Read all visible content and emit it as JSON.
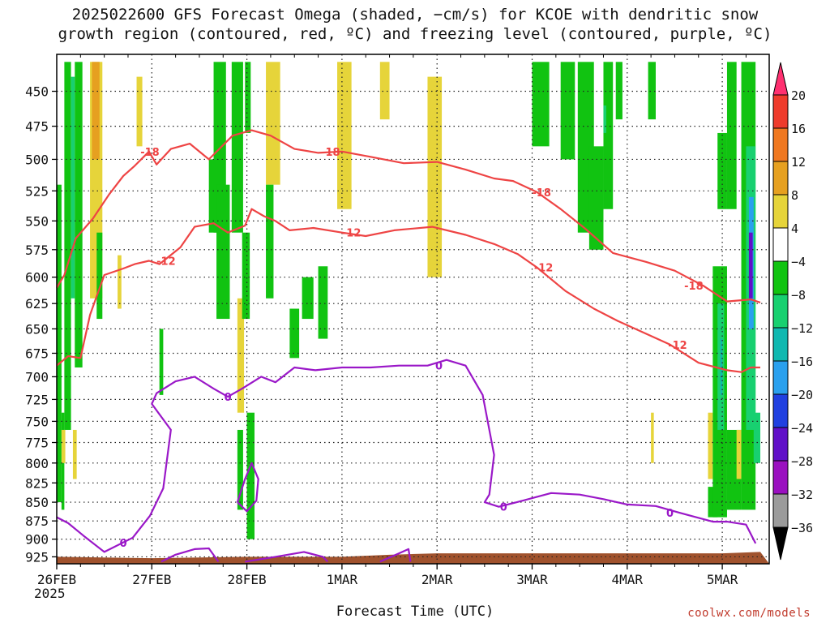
{
  "title_line1": "2025022600 GFS Forecast Omega (shaded, −cm/s) for KCOE with dendritic snow",
  "title_line2": "growth region (contoured, red, ºC) and freezing level (contoured, purple, ºC)",
  "credit": "coolwx.com/models",
  "chart_data": {
    "type": "heatmap",
    "xlabel": "Forecast Time (UTC)",
    "ylabel": "",
    "year_label": "2025",
    "x_ticks": [
      {
        "t": 0,
        "label": "26FEB"
      },
      {
        "t": 1,
        "label": "27FEB"
      },
      {
        "t": 2,
        "label": "28FEB"
      },
      {
        "t": 3,
        "label": "1MAR"
      },
      {
        "t": 4,
        "label": "2MAR"
      },
      {
        "t": 5,
        "label": "3MAR"
      },
      {
        "t": 6,
        "label": "4MAR"
      },
      {
        "t": 7,
        "label": "5MAR"
      }
    ],
    "xlim": [
      0,
      7.4
    ],
    "y_ticks": [
      450,
      475,
      500,
      525,
      550,
      575,
      600,
      625,
      650,
      675,
      700,
      725,
      750,
      775,
      800,
      825,
      850,
      875,
      900,
      925
    ],
    "ylim": [
      425,
      935
    ],
    "y_scale": "log-pressure",
    "grid": true,
    "colorbar": {
      "levels": [
        "20",
        "16",
        "12",
        "8",
        "4",
        "−4",
        "−8",
        "−12",
        "−16",
        "−20",
        "−24",
        "−28",
        "−32",
        "−36"
      ],
      "colors": [
        "#ff3070",
        "#ef3b2c",
        "#f07820",
        "#e6a020",
        "#e6d43a",
        "#ffffff",
        "#11c311",
        "#18d070",
        "#10b8b0",
        "#2aa0ee",
        "#2040e0",
        "#6010c8",
        "#9a10c0",
        "#9b9b9b",
        "#000000"
      ]
    },
    "dgz_contours": [
      {
        "level": -18,
        "label": "-18",
        "color": "#ee4444",
        "points": [
          [
            0.0,
            610
          ],
          [
            0.08,
            598
          ],
          [
            0.2,
            565
          ],
          [
            0.38,
            548
          ],
          [
            0.55,
            528
          ],
          [
            0.7,
            513
          ],
          [
            0.82,
            505
          ],
          [
            0.97,
            494
          ],
          [
            1.05,
            504
          ],
          [
            1.2,
            492
          ],
          [
            1.4,
            488
          ],
          [
            1.6,
            500
          ],
          [
            1.85,
            482
          ],
          [
            2.05,
            478
          ],
          [
            2.25,
            482
          ],
          [
            2.5,
            492
          ],
          [
            2.75,
            495
          ],
          [
            3.0,
            494
          ],
          [
            3.3,
            498
          ],
          [
            3.65,
            503
          ],
          [
            4.0,
            502
          ],
          [
            4.3,
            508
          ],
          [
            4.6,
            515
          ],
          [
            4.8,
            517
          ],
          [
            5.05,
            526
          ],
          [
            5.3,
            540
          ],
          [
            5.55,
            556
          ],
          [
            5.85,
            578
          ],
          [
            6.2,
            586
          ],
          [
            6.5,
            594
          ],
          [
            6.8,
            608
          ],
          [
            7.05,
            623
          ],
          [
            7.3,
            621
          ],
          [
            7.4,
            624
          ]
        ]
      },
      {
        "level": -12,
        "label": "-12",
        "color": "#ee4444",
        "points": [
          [
            0.0,
            688
          ],
          [
            0.12,
            678
          ],
          [
            0.25,
            680
          ],
          [
            0.35,
            636
          ],
          [
            0.5,
            598
          ],
          [
            0.7,
            592
          ],
          [
            0.82,
            588
          ],
          [
            0.97,
            585
          ],
          [
            1.08,
            588
          ],
          [
            1.3,
            573
          ],
          [
            1.45,
            555
          ],
          [
            1.65,
            552
          ],
          [
            1.8,
            560
          ],
          [
            1.98,
            554
          ],
          [
            2.05,
            540
          ],
          [
            2.18,
            546
          ],
          [
            2.3,
            550
          ],
          [
            2.45,
            558
          ],
          [
            2.7,
            556
          ],
          [
            3.0,
            560
          ],
          [
            3.25,
            563
          ],
          [
            3.55,
            558
          ],
          [
            3.95,
            555
          ],
          [
            4.3,
            562
          ],
          [
            4.6,
            570
          ],
          [
            4.85,
            579
          ],
          [
            5.05,
            591
          ],
          [
            5.35,
            613
          ],
          [
            5.65,
            630
          ],
          [
            5.9,
            642
          ],
          [
            6.2,
            655
          ],
          [
            6.45,
            666
          ],
          [
            6.75,
            685
          ],
          [
            7.05,
            693
          ],
          [
            7.2,
            695
          ],
          [
            7.3,
            690
          ],
          [
            7.4,
            690
          ]
        ]
      }
    ],
    "freezing_contours": [
      {
        "level": 0,
        "label": "0",
        "color": "#9a18c8",
        "points": [
          [
            0.0,
            870
          ],
          [
            0.12,
            878
          ],
          [
            0.28,
            895
          ],
          [
            0.5,
            918
          ],
          [
            0.8,
            898
          ],
          [
            0.98,
            868
          ],
          [
            1.12,
            832
          ],
          [
            1.2,
            760
          ],
          [
            1.0,
            730
          ],
          [
            1.05,
            718
          ],
          [
            1.25,
            705
          ],
          [
            1.45,
            700
          ],
          [
            1.65,
            713
          ],
          [
            1.8,
            722
          ],
          [
            1.95,
            713
          ],
          [
            2.15,
            700
          ],
          [
            2.3,
            706
          ],
          [
            2.5,
            690
          ],
          [
            2.72,
            693
          ],
          [
            3.0,
            690
          ],
          [
            3.3,
            690
          ],
          [
            3.6,
            688
          ],
          [
            3.9,
            688
          ],
          [
            4.1,
            682
          ],
          [
            4.3,
            688
          ],
          [
            4.48,
            720
          ],
          [
            4.6,
            790
          ],
          [
            4.55,
            840
          ],
          [
            4.5,
            850
          ],
          [
            4.65,
            856
          ],
          [
            4.9,
            848
          ],
          [
            5.2,
            838
          ],
          [
            5.5,
            840
          ],
          [
            5.75,
            846
          ],
          [
            6.0,
            853
          ],
          [
            6.3,
            855
          ],
          [
            6.55,
            864
          ],
          [
            6.9,
            876
          ],
          [
            7.05,
            876
          ],
          [
            7.25,
            880
          ],
          [
            7.35,
            906
          ]
        ]
      },
      {
        "level": 0,
        "label": "",
        "color": "#9a18c8",
        "points": [
          [
            1.1,
            932
          ],
          [
            1.25,
            922
          ],
          [
            1.45,
            914
          ],
          [
            1.6,
            913
          ],
          [
            1.7,
            932
          ]
        ]
      },
      {
        "level": 0,
        "label": "",
        "color": "#9a18c8",
        "points": [
          [
            1.98,
            932
          ],
          [
            2.3,
            925
          ],
          [
            2.6,
            918
          ],
          [
            2.8,
            925
          ],
          [
            2.85,
            932
          ]
        ]
      },
      {
        "level": 0,
        "label": "",
        "color": "#9a18c8",
        "points": [
          [
            3.4,
            932
          ],
          [
            3.6,
            920
          ],
          [
            3.7,
            914
          ],
          [
            3.72,
            932
          ]
        ]
      },
      {
        "level": 0,
        "label": "",
        "color": "#9a18c8",
        "points": [
          [
            1.9,
            850
          ],
          [
            1.98,
            820
          ],
          [
            2.05,
            800
          ],
          [
            2.12,
            820
          ],
          [
            2.1,
            848
          ],
          [
            2.0,
            862
          ],
          [
            1.9,
            850
          ]
        ]
      }
    ],
    "omega_cells": [
      {
        "t0": 0.08,
        "t1": 0.15,
        "p0": 430,
        "p1": 760,
        "value": -6
      },
      {
        "t0": 0.15,
        "t1": 0.19,
        "p0": 440,
        "p1": 620,
        "value": -10
      },
      {
        "t0": 0.19,
        "t1": 0.27,
        "p0": 430,
        "p1": 690,
        "value": -6
      },
      {
        "t0": 0.0,
        "t1": 0.05,
        "p0": 520,
        "p1": 850,
        "value": -6
      },
      {
        "t0": 0.05,
        "t1": 0.08,
        "p0": 740,
        "p1": 860,
        "value": -6
      },
      {
        "t0": 0.35,
        "t1": 0.48,
        "p0": 430,
        "p1": 620,
        "value": 5
      },
      {
        "t0": 0.37,
        "t1": 0.45,
        "p0": 430,
        "p1": 500,
        "value": 9
      },
      {
        "t0": 0.05,
        "t1": 0.09,
        "p0": 760,
        "p1": 800,
        "value": 5
      },
      {
        "t0": 0.17,
        "t1": 0.21,
        "p0": 760,
        "p1": 820,
        "value": 5
      },
      {
        "t0": 0.64,
        "t1": 0.68,
        "p0": 580,
        "p1": 630,
        "value": 5
      },
      {
        "t0": 0.42,
        "t1": 0.48,
        "p0": 560,
        "p1": 640,
        "value": -6
      },
      {
        "t0": 1.08,
        "t1": 1.12,
        "p0": 650,
        "p1": 720,
        "value": -6
      },
      {
        "t0": 0.84,
        "t1": 0.9,
        "p0": 440,
        "p1": 490,
        "value": 5
      },
      {
        "t0": 1.65,
        "t1": 1.78,
        "p0": 430,
        "p1": 560,
        "value": -6
      },
      {
        "t0": 1.6,
        "t1": 1.74,
        "p0": 500,
        "p1": 560,
        "value": -6
      },
      {
        "t0": 1.68,
        "t1": 1.82,
        "p0": 520,
        "p1": 640,
        "value": -6
      },
      {
        "t0": 1.84,
        "t1": 1.96,
        "p0": 430,
        "p1": 560,
        "value": -6
      },
      {
        "t0": 1.98,
        "t1": 2.04,
        "p0": 430,
        "p1": 480,
        "value": -6
      },
      {
        "t0": 1.9,
        "t1": 1.97,
        "p0": 620,
        "p1": 740,
        "value": 5
      },
      {
        "t0": 1.9,
        "t1": 1.96,
        "p0": 760,
        "p1": 860,
        "value": -6
      },
      {
        "t0": 2.0,
        "t1": 2.08,
        "p0": 740,
        "p1": 900,
        "value": -6
      },
      {
        "t0": 2.2,
        "t1": 2.35,
        "p0": 430,
        "p1": 520,
        "value": 5
      },
      {
        "t0": 1.95,
        "t1": 2.03,
        "p0": 560,
        "p1": 640,
        "value": -6
      },
      {
        "t0": 2.2,
        "t1": 2.28,
        "p0": 520,
        "p1": 620,
        "value": -6
      },
      {
        "t0": 2.45,
        "t1": 2.55,
        "p0": 630,
        "p1": 680,
        "value": -6
      },
      {
        "t0": 2.58,
        "t1": 2.7,
        "p0": 600,
        "p1": 640,
        "value": -6
      },
      {
        "t0": 2.75,
        "t1": 2.85,
        "p0": 590,
        "p1": 660,
        "value": -6
      },
      {
        "t0": 2.95,
        "t1": 3.1,
        "p0": 430,
        "p1": 540,
        "value": 5
      },
      {
        "t0": 3.4,
        "t1": 3.5,
        "p0": 430,
        "p1": 470,
        "value": 5
      },
      {
        "t0": 3.9,
        "t1": 4.05,
        "p0": 440,
        "p1": 600,
        "value": 5
      },
      {
        "t0": 5.0,
        "t1": 5.18,
        "p0": 430,
        "p1": 490,
        "value": -6
      },
      {
        "t0": 5.3,
        "t1": 5.45,
        "p0": 430,
        "p1": 500,
        "value": -6
      },
      {
        "t0": 5.48,
        "t1": 5.65,
        "p0": 430,
        "p1": 560,
        "value": -6
      },
      {
        "t0": 5.6,
        "t1": 5.75,
        "p0": 490,
        "p1": 575,
        "value": -6
      },
      {
        "t0": 5.75,
        "t1": 5.85,
        "p0": 430,
        "p1": 540,
        "value": -6
      },
      {
        "t0": 5.88,
        "t1": 5.95,
        "p0": 430,
        "p1": 470,
        "value": -6
      },
      {
        "t0": 5.75,
        "t1": 5.78,
        "p0": 460,
        "p1": 480,
        "value": -10
      },
      {
        "t0": 6.22,
        "t1": 6.3,
        "p0": 430,
        "p1": 470,
        "value": -6
      },
      {
        "t0": 6.25,
        "t1": 6.28,
        "p0": 740,
        "p1": 800,
        "value": 5
      },
      {
        "t0": 6.85,
        "t1": 6.95,
        "p0": 830,
        "p1": 870,
        "value": -6
      },
      {
        "t0": 6.95,
        "t1": 7.05,
        "p0": 480,
        "p1": 540,
        "value": -6
      },
      {
        "t0": 6.85,
        "t1": 6.9,
        "p0": 740,
        "p1": 820,
        "value": 5
      },
      {
        "t0": 6.9,
        "t1": 7.05,
        "p0": 590,
        "p1": 870,
        "value": -6
      },
      {
        "t0": 6.95,
        "t1": 7.02,
        "p0": 625,
        "p1": 760,
        "value": -10
      },
      {
        "t0": 6.98,
        "t1": 7.0,
        "p0": 660,
        "p1": 720,
        "value": -16
      },
      {
        "t0": 7.05,
        "t1": 7.15,
        "p0": 430,
        "p1": 540,
        "value": -6
      },
      {
        "t0": 7.05,
        "t1": 7.2,
        "p0": 760,
        "p1": 860,
        "value": -6
      },
      {
        "t0": 7.15,
        "t1": 7.2,
        "p0": 760,
        "p1": 820,
        "value": 5
      },
      {
        "t0": 7.2,
        "t1": 7.35,
        "p0": 430,
        "p1": 860,
        "value": -6
      },
      {
        "t0": 7.25,
        "t1": 7.35,
        "p0": 490,
        "p1": 760,
        "value": -12
      },
      {
        "t0": 7.28,
        "t1": 7.33,
        "p0": 530,
        "p1": 650,
        "value": -18
      },
      {
        "t0": 7.28,
        "t1": 7.32,
        "p0": 560,
        "p1": 620,
        "value": -26
      },
      {
        "t0": 7.33,
        "t1": 7.4,
        "p0": 740,
        "p1": 800,
        "value": -10
      }
    ],
    "terrain_top_hpa": [
      [
        0.0,
        925
      ],
      [
        1.0,
        927
      ],
      [
        2.0,
        925
      ],
      [
        3.0,
        925
      ],
      [
        3.5,
        922
      ],
      [
        4.0,
        920
      ],
      [
        5.0,
        920
      ],
      [
        6.0,
        920
      ],
      [
        7.0,
        920
      ],
      [
        7.4,
        918
      ]
    ],
    "terrain_color": "#a0522d"
  }
}
